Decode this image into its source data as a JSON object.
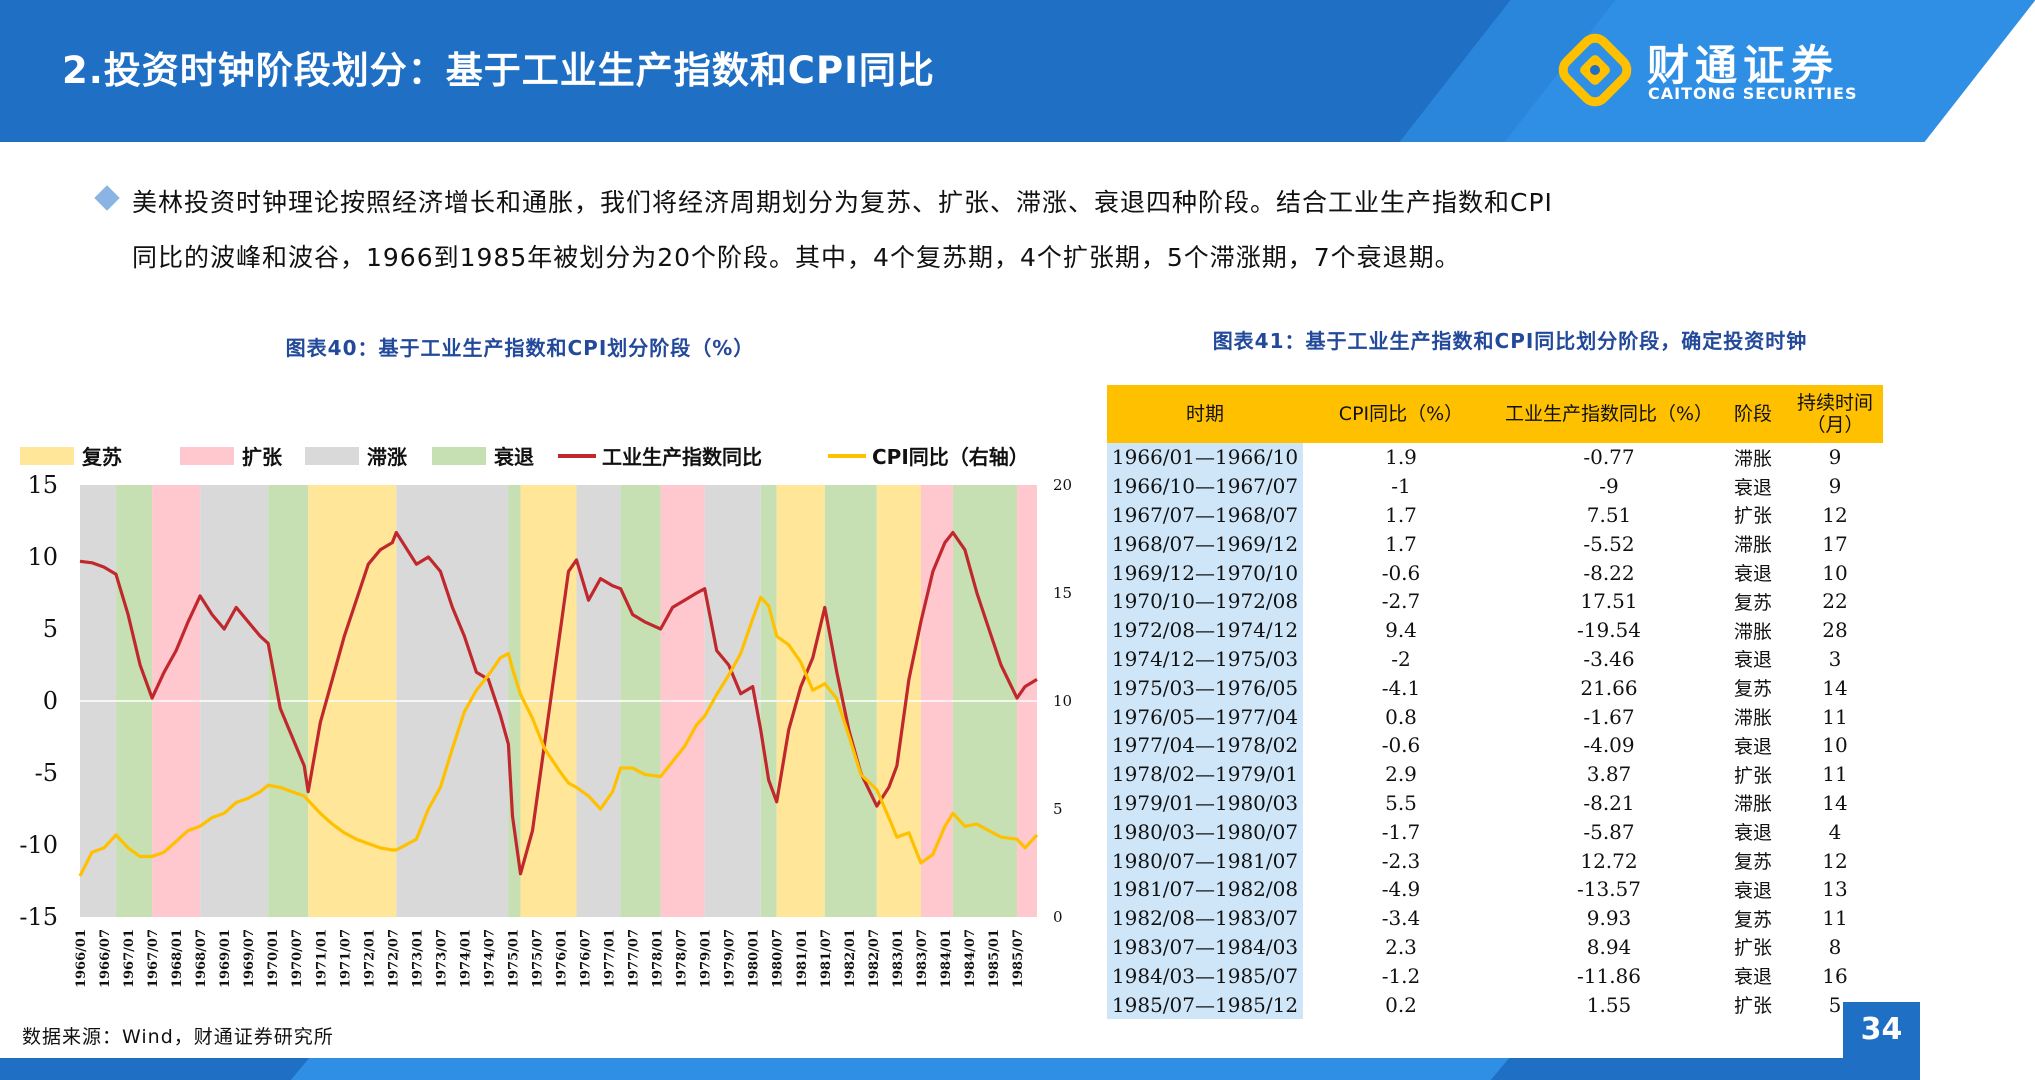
{
  "header": {
    "title": "2.投资时钟阶段划分：基于工业生产指数和CPI同比",
    "logo_cn": "财通证券",
    "logo_en": "CAITONG SECURITIES",
    "logo_icon": "caitong-logo-icon"
  },
  "intro": {
    "bullet_icon": "diamond-bullet-icon",
    "line1": "美林投资时钟理论按照经济增长和通胀，我们将经济周期划分为复苏、扩张、滞涨、衰退四种阶段。结合工业生产指数和CPI",
    "line2": "同比的波峰和波谷，1966到1985年被划分为20个阶段。其中，4个复苏期，4个扩张期，5个滞涨期，7个衰退期。"
  },
  "chart_title": "图表40：基于工业生产指数和CPI划分阶段（%）",
  "table_title": "图表41：基于工业生产指数和CPI同比划分阶段，确定投资时钟",
  "source": "数据来源：Wind，财通证券研究所",
  "page_number": "34",
  "colors": {
    "header_blue": "#1f6fc4",
    "recovery": "#ffe699",
    "expansion": "#ffc7ce",
    "stagflation": "#d9d9d9",
    "recession": "#c6e0b4",
    "ip_line": "#c0282d",
    "cpi_line": "#ffc000",
    "table_header": "#ffc000",
    "table_period": "#cfe6f8"
  },
  "chart_data": {
    "type": "line",
    "title": "",
    "legend": [
      {
        "label": "复苏",
        "kind": "band",
        "color": "#ffe699"
      },
      {
        "label": "扩张",
        "kind": "band",
        "color": "#ffc7ce"
      },
      {
        "label": "滞涨",
        "kind": "band",
        "color": "#d9d9d9"
      },
      {
        "label": "衰退",
        "kind": "band",
        "color": "#c6e0b4"
      },
      {
        "label": "工业生产指数同比",
        "kind": "line",
        "color": "#c0282d"
      },
      {
        "label": "CPI同比（右轴）",
        "kind": "line",
        "color": "#ffc000"
      }
    ],
    "legend_position": "top",
    "grid": false,
    "y_left": {
      "lim": [
        -15,
        15
      ],
      "ticks": [
        "15",
        "10",
        "5",
        "0",
        "-5",
        "-10",
        "-15"
      ]
    },
    "y_right": {
      "lim": [
        0,
        20
      ],
      "ticks": [
        "20",
        "15",
        "10",
        "5",
        "0"
      ]
    },
    "x_range": [
      "1966-01",
      "1985-12"
    ],
    "x_tick_labels": [
      "1966/01",
      "1966/07",
      "1967/01",
      "1967/07",
      "1968/01",
      "1968/07",
      "1969/01",
      "1969/07",
      "1970/01",
      "1970/07",
      "1971/01",
      "1971/07",
      "1972/01",
      "1972/07",
      "1973/01",
      "1973/07",
      "1974/01",
      "1974/07",
      "1975/01",
      "1975/07",
      "1976/01",
      "1976/07",
      "1977/01",
      "1977/07",
      "1978/01",
      "1978/07",
      "1979/01",
      "1979/07",
      "1980/01",
      "1980/07",
      "1981/01",
      "1981/07",
      "1982/01",
      "1982/07",
      "1983/01",
      "1983/07",
      "1984/01",
      "1984/07",
      "1985/01",
      "1985/07"
    ],
    "phases": [
      {
        "start": "1966-01",
        "end": "1966-10",
        "stage": "滞涨"
      },
      {
        "start": "1966-10",
        "end": "1967-07",
        "stage": "衰退"
      },
      {
        "start": "1967-07",
        "end": "1968-07",
        "stage": "扩张"
      },
      {
        "start": "1968-07",
        "end": "1969-12",
        "stage": "滞涨"
      },
      {
        "start": "1969-12",
        "end": "1970-10",
        "stage": "衰退"
      },
      {
        "start": "1970-10",
        "end": "1972-08",
        "stage": "复苏"
      },
      {
        "start": "1972-08",
        "end": "1974-12",
        "stage": "滞涨"
      },
      {
        "start": "1974-12",
        "end": "1975-03",
        "stage": "衰退"
      },
      {
        "start": "1975-03",
        "end": "1976-05",
        "stage": "复苏"
      },
      {
        "start": "1976-05",
        "end": "1977-04",
        "stage": "滞涨"
      },
      {
        "start": "1977-04",
        "end": "1978-02",
        "stage": "衰退"
      },
      {
        "start": "1978-02",
        "end": "1979-01",
        "stage": "扩张"
      },
      {
        "start": "1979-01",
        "end": "1980-03",
        "stage": "滞涨"
      },
      {
        "start": "1980-03",
        "end": "1980-07",
        "stage": "衰退"
      },
      {
        "start": "1980-07",
        "end": "1981-07",
        "stage": "复苏"
      },
      {
        "start": "1981-07",
        "end": "1982-08",
        "stage": "衰退"
      },
      {
        "start": "1982-08",
        "end": "1983-07",
        "stage": "复苏"
      },
      {
        "start": "1983-07",
        "end": "1984-03",
        "stage": "扩张"
      },
      {
        "start": "1984-03",
        "end": "1985-07",
        "stage": "衰退"
      },
      {
        "start": "1985-07",
        "end": "1985-12",
        "stage": "扩张"
      }
    ],
    "series": [
      {
        "name": "工业生产指数同比",
        "axis": "left",
        "points": [
          [
            "1966-01",
            9.7
          ],
          [
            "1966-04",
            9.6
          ],
          [
            "1966-07",
            9.3
          ],
          [
            "1966-10",
            8.8
          ],
          [
            "1967-01",
            6.0
          ],
          [
            "1967-04",
            2.5
          ],
          [
            "1967-07",
            0.2
          ],
          [
            "1967-10",
            2.0
          ],
          [
            "1968-01",
            3.5
          ],
          [
            "1968-04",
            5.5
          ],
          [
            "1968-07",
            7.3
          ],
          [
            "1968-10",
            6.0
          ],
          [
            "1969-01",
            5.0
          ],
          [
            "1969-04",
            6.5
          ],
          [
            "1969-07",
            5.5
          ],
          [
            "1969-10",
            4.5
          ],
          [
            "1969-12",
            4.0
          ],
          [
            "1970-03",
            -0.5
          ],
          [
            "1970-06",
            -2.5
          ],
          [
            "1970-09",
            -4.5
          ],
          [
            "1970-10",
            -6.3
          ],
          [
            "1971-01",
            -1.5
          ],
          [
            "1971-04",
            1.5
          ],
          [
            "1971-07",
            4.5
          ],
          [
            "1971-10",
            7.0
          ],
          [
            "1972-01",
            9.5
          ],
          [
            "1972-04",
            10.5
          ],
          [
            "1972-07",
            11.0
          ],
          [
            "1972-08",
            11.7
          ],
          [
            "1973-01",
            9.5
          ],
          [
            "1973-04",
            10.0
          ],
          [
            "1973-07",
            9.0
          ],
          [
            "1973-10",
            6.5
          ],
          [
            "1974-01",
            4.5
          ],
          [
            "1974-04",
            2.0
          ],
          [
            "1974-07",
            1.5
          ],
          [
            "1974-10",
            -1.0
          ],
          [
            "1974-12",
            -3.0
          ],
          [
            "1975-01",
            -8.0
          ],
          [
            "1975-03",
            -12.0
          ],
          [
            "1975-06",
            -9.0
          ],
          [
            "1975-09",
            -3.0
          ],
          [
            "1976-01",
            5.0
          ],
          [
            "1976-03",
            9.0
          ],
          [
            "1976-05",
            9.8
          ],
          [
            "1976-08",
            7.0
          ],
          [
            "1976-11",
            8.5
          ],
          [
            "1977-02",
            8.0
          ],
          [
            "1977-04",
            7.8
          ],
          [
            "1977-07",
            6.0
          ],
          [
            "1977-10",
            5.5
          ],
          [
            "1978-02",
            5.0
          ],
          [
            "1978-05",
            6.5
          ],
          [
            "1978-08",
            7.0
          ],
          [
            "1978-11",
            7.5
          ],
          [
            "1979-01",
            7.8
          ],
          [
            "1979-04",
            3.5
          ],
          [
            "1979-07",
            2.5
          ],
          [
            "1979-10",
            0.5
          ],
          [
            "1980-01",
            1.0
          ],
          [
            "1980-03",
            -2.0
          ],
          [
            "1980-05",
            -5.5
          ],
          [
            "1980-07",
            -7.0
          ],
          [
            "1980-10",
            -2.0
          ],
          [
            "1981-01",
            1.0
          ],
          [
            "1981-04",
            3.0
          ],
          [
            "1981-07",
            6.5
          ],
          [
            "1981-10",
            2.0
          ],
          [
            "1982-01",
            -2.0
          ],
          [
            "1982-04",
            -5.0
          ],
          [
            "1982-08",
            -7.3
          ],
          [
            "1982-11",
            -6.0
          ],
          [
            "1983-01",
            -4.5
          ],
          [
            "1983-04",
            1.5
          ],
          [
            "1983-07",
            5.5
          ],
          [
            "1983-10",
            9.0
          ],
          [
            "1984-01",
            11.0
          ],
          [
            "1984-03",
            11.7
          ],
          [
            "1984-06",
            10.5
          ],
          [
            "1984-09",
            7.5
          ],
          [
            "1984-12",
            5.0
          ],
          [
            "1985-03",
            2.5
          ],
          [
            "1985-07",
            0.2
          ],
          [
            "1985-09",
            1.0
          ],
          [
            "1985-12",
            1.5
          ]
        ]
      },
      {
        "name": "CPI同比（右轴）",
        "axis": "right",
        "points": [
          [
            "1966-01",
            1.9
          ],
          [
            "1966-04",
            3.0
          ],
          [
            "1966-07",
            3.2
          ],
          [
            "1966-10",
            3.8
          ],
          [
            "1967-01",
            3.2
          ],
          [
            "1967-04",
            2.8
          ],
          [
            "1967-07",
            2.8
          ],
          [
            "1967-10",
            3.0
          ],
          [
            "1968-01",
            3.5
          ],
          [
            "1968-04",
            4.0
          ],
          [
            "1968-07",
            4.2
          ],
          [
            "1968-10",
            4.6
          ],
          [
            "1969-01",
            4.8
          ],
          [
            "1969-04",
            5.3
          ],
          [
            "1969-07",
            5.5
          ],
          [
            "1969-10",
            5.8
          ],
          [
            "1969-12",
            6.1
          ],
          [
            "1970-03",
            6.0
          ],
          [
            "1970-06",
            5.8
          ],
          [
            "1970-09",
            5.6
          ],
          [
            "1970-10",
            5.4
          ],
          [
            "1971-01",
            4.8
          ],
          [
            "1971-04",
            4.3
          ],
          [
            "1971-07",
            3.9
          ],
          [
            "1971-10",
            3.6
          ],
          [
            "1972-01",
            3.4
          ],
          [
            "1972-04",
            3.2
          ],
          [
            "1972-07",
            3.1
          ],
          [
            "1972-08",
            3.1
          ],
          [
            "1973-01",
            3.6
          ],
          [
            "1973-04",
            5.0
          ],
          [
            "1973-07",
            6.0
          ],
          [
            "1973-10",
            7.8
          ],
          [
            "1974-01",
            9.5
          ],
          [
            "1974-04",
            10.5
          ],
          [
            "1974-07",
            11.2
          ],
          [
            "1974-10",
            12.0
          ],
          [
            "1974-12",
            12.2
          ],
          [
            "1975-01",
            11.5
          ],
          [
            "1975-03",
            10.3
          ],
          [
            "1975-06",
            9.2
          ],
          [
            "1975-09",
            7.8
          ],
          [
            "1976-01",
            6.7
          ],
          [
            "1976-03",
            6.2
          ],
          [
            "1976-05",
            6.0
          ],
          [
            "1976-08",
            5.6
          ],
          [
            "1976-11",
            5.0
          ],
          [
            "1977-02",
            5.8
          ],
          [
            "1977-04",
            6.9
          ],
          [
            "1977-07",
            6.9
          ],
          [
            "1977-10",
            6.6
          ],
          [
            "1978-02",
            6.5
          ],
          [
            "1978-05",
            7.2
          ],
          [
            "1978-08",
            7.9
          ],
          [
            "1978-11",
            8.9
          ],
          [
            "1979-01",
            9.3
          ],
          [
            "1979-04",
            10.3
          ],
          [
            "1979-07",
            11.2
          ],
          [
            "1979-10",
            12.2
          ],
          [
            "1980-01",
            13.8
          ],
          [
            "1980-03",
            14.8
          ],
          [
            "1980-05",
            14.4
          ],
          [
            "1980-07",
            13.0
          ],
          [
            "1980-10",
            12.6
          ],
          [
            "1981-01",
            11.8
          ],
          [
            "1981-04",
            10.5
          ],
          [
            "1981-07",
            10.8
          ],
          [
            "1981-10",
            10.1
          ],
          [
            "1982-01",
            8.4
          ],
          [
            "1982-04",
            6.6
          ],
          [
            "1982-08",
            5.9
          ],
          [
            "1982-11",
            4.6
          ],
          [
            "1983-01",
            3.7
          ],
          [
            "1983-04",
            3.9
          ],
          [
            "1983-07",
            2.5
          ],
          [
            "1983-10",
            2.9
          ],
          [
            "1984-01",
            4.2
          ],
          [
            "1984-03",
            4.8
          ],
          [
            "1984-06",
            4.2
          ],
          [
            "1984-09",
            4.3
          ],
          [
            "1984-12",
            4.0
          ],
          [
            "1985-03",
            3.7
          ],
          [
            "1985-07",
            3.6
          ],
          [
            "1985-09",
            3.2
          ],
          [
            "1985-12",
            3.8
          ]
        ]
      }
    ]
  },
  "table": {
    "headers": [
      "时期",
      "CPI同比（%）",
      "工业生产指数同比（%）",
      "阶段",
      "持续时间（月）"
    ],
    "rows": [
      [
        "1966/01—1966/10",
        "1.9",
        "-0.77",
        "滞胀",
        "9"
      ],
      [
        "1966/10—1967/07",
        "-1",
        "-9",
        "衰退",
        "9"
      ],
      [
        "1967/07—1968/07",
        "1.7",
        "7.51",
        "扩张",
        "12"
      ],
      [
        "1968/07—1969/12",
        "1.7",
        "-5.52",
        "滞胀",
        "17"
      ],
      [
        "1969/12—1970/10",
        "-0.6",
        "-8.22",
        "衰退",
        "10"
      ],
      [
        "1970/10—1972/08",
        "-2.7",
        "17.51",
        "复苏",
        "22"
      ],
      [
        "1972/08—1974/12",
        "9.4",
        "-19.54",
        "滞胀",
        "28"
      ],
      [
        "1974/12—1975/03",
        "-2",
        "-3.46",
        "衰退",
        "3"
      ],
      [
        "1975/03—1976/05",
        "-4.1",
        "21.66",
        "复苏",
        "14"
      ],
      [
        "1976/05—1977/04",
        "0.8",
        "-1.67",
        "滞胀",
        "11"
      ],
      [
        "1977/04—1978/02",
        "-0.6",
        "-4.09",
        "衰退",
        "10"
      ],
      [
        "1978/02—1979/01",
        "2.9",
        "3.87",
        "扩张",
        "11"
      ],
      [
        "1979/01—1980/03",
        "5.5",
        "-8.21",
        "滞胀",
        "14"
      ],
      [
        "1980/03—1980/07",
        "-1.7",
        "-5.87",
        "衰退",
        "4"
      ],
      [
        "1980/07—1981/07",
        "-2.3",
        "12.72",
        "复苏",
        "12"
      ],
      [
        "1981/07—1982/08",
        "-4.9",
        "-13.57",
        "衰退",
        "13"
      ],
      [
        "1982/08—1983/07",
        "-3.4",
        "9.93",
        "复苏",
        "11"
      ],
      [
        "1983/07—1984/03",
        "2.3",
        "8.94",
        "扩张",
        "8"
      ],
      [
        "1984/03—1985/07",
        "-1.2",
        "-11.86",
        "衰退",
        "16"
      ],
      [
        "1985/07—1985/12",
        "0.2",
        "1.55",
        "扩张",
        "5"
      ]
    ]
  }
}
